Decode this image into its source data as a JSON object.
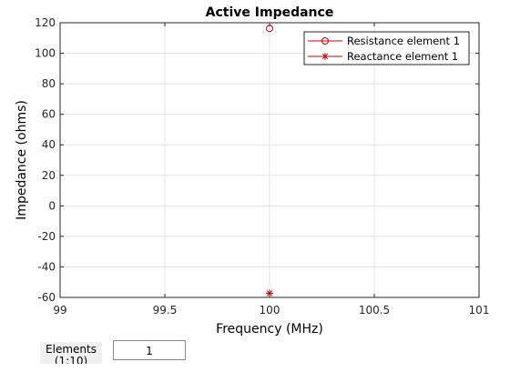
{
  "chart_data": {
    "type": "scatter",
    "title": "Active Impedance",
    "xlabel": "Frequency (MHz)",
    "ylabel": "Impedance (ohms)",
    "xlim": [
      99,
      101
    ],
    "ylim": [
      -60,
      120
    ],
    "x_ticks": [
      "99",
      "99.5",
      "100",
      "100.5",
      "101"
    ],
    "x_tick_values": [
      99,
      99.5,
      100,
      100.5,
      101
    ],
    "y_ticks": [
      "120",
      "100",
      "80",
      "60",
      "40",
      "20",
      "0",
      "-20",
      "-40",
      "-60"
    ],
    "y_tick_values": [
      120,
      100,
      80,
      60,
      40,
      20,
      0,
      -20,
      -40,
      -60
    ],
    "grid": true,
    "legend_position": "top-right",
    "series": [
      {
        "name": "Resistance element 1",
        "marker": "circle",
        "color": "#c00000",
        "points": [
          {
            "x": 100,
            "y": 116.3
          }
        ]
      },
      {
        "name": "Reactance element 1",
        "marker": "asterisk",
        "color": "#c00000",
        "points": [
          {
            "x": 100,
            "y": -57.3
          }
        ]
      }
    ]
  },
  "controls": {
    "elements_label": "Elements\n(1:10)",
    "elements_value": "1"
  }
}
